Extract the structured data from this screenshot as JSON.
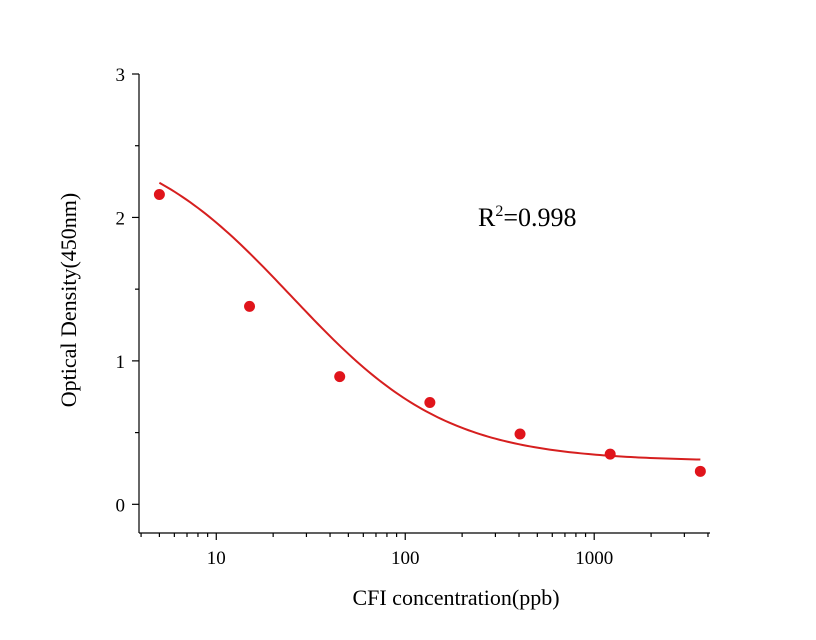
{
  "chart_data": {
    "type": "scatter",
    "xlabel": "CFI concentration(ppb)",
    "ylabel": "Optical Density(450nm)",
    "xscale": "log",
    "xlim": [
      3.9,
      4100
    ],
    "ylim": [
      -0.2,
      3
    ],
    "x_ticks": [
      10,
      100,
      1000
    ],
    "x_tick_labels": [
      "10",
      "100",
      "1000"
    ],
    "y_ticks": [
      0,
      1,
      2,
      3
    ],
    "y_tick_labels": [
      "0",
      "1",
      "2",
      "3"
    ],
    "grid": false,
    "legend": "none",
    "series": [
      {
        "x": [
          5,
          15,
          45,
          135,
          405,
          1215,
          3645
        ],
        "y": [
          2.16,
          1.38,
          0.89,
          0.71,
          0.49,
          0.35,
          0.23
        ],
        "color": "#e0141b"
      }
    ],
    "fit": {
      "model": "4PL",
      "A": 2.6,
      "B": 1.05,
      "C": 25,
      "D": 0.3,
      "x_range": [
        5,
        3645
      ],
      "color": "#d61f1f"
    },
    "annotation": {
      "prefix": "R",
      "sup": "2",
      "suffix": "=0.998"
    }
  }
}
